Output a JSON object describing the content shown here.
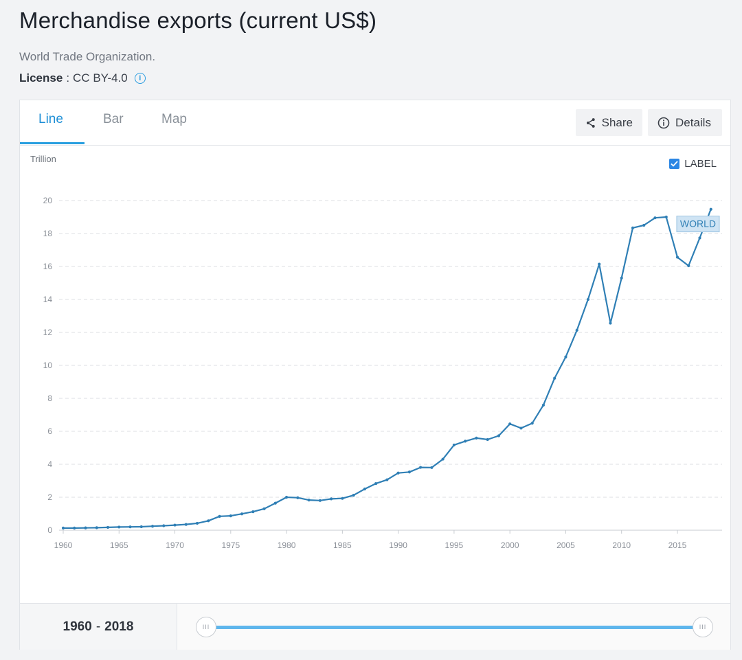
{
  "header": {
    "title": "Merchandise exports (current US$)",
    "source": "World Trade Organization.",
    "license_label": "License",
    "license_sep": ":",
    "license_value": "CC BY-4.0",
    "info_glyph": "i"
  },
  "tabs": [
    {
      "label": "Line",
      "active": true
    },
    {
      "label": "Bar",
      "active": false
    },
    {
      "label": "Map",
      "active": false
    }
  ],
  "toolbar": {
    "share_label": "Share",
    "details_label": "Details"
  },
  "chart_controls": {
    "label_toggle": "LABEL",
    "label_checked": true
  },
  "range": {
    "start": "1960",
    "end": "2018",
    "separator": "-",
    "handle_glyph": "III"
  },
  "colors": {
    "accent": "#2a9fe0",
    "line": "#2f7fb5",
    "grid": "#dcdfe3",
    "label_bg": "#cfe4f4"
  },
  "chart_data": {
    "type": "line",
    "title": "",
    "ylabel": "Trillion",
    "xlabel": "",
    "ylim": [
      0,
      20
    ],
    "yticks": [
      0,
      2,
      4,
      6,
      8,
      10,
      12,
      14,
      16,
      18,
      20
    ],
    "xticks": [
      1960,
      1965,
      1970,
      1975,
      1980,
      1985,
      1990,
      1995,
      2000,
      2005,
      2010,
      2015
    ],
    "grid": true,
    "series": [
      {
        "name": "WORLD",
        "label": "WORLD",
        "x": [
          1960,
          1961,
          1962,
          1963,
          1964,
          1965,
          1966,
          1967,
          1968,
          1969,
          1970,
          1971,
          1972,
          1973,
          1974,
          1975,
          1976,
          1977,
          1978,
          1979,
          1980,
          1981,
          1982,
          1983,
          1984,
          1985,
          1986,
          1987,
          1988,
          1989,
          1990,
          1991,
          1992,
          1993,
          1994,
          1995,
          1996,
          1997,
          1998,
          1999,
          2000,
          2001,
          2002,
          2003,
          2004,
          2005,
          2006,
          2007,
          2008,
          2009,
          2010,
          2011,
          2012,
          2013,
          2014,
          2015,
          2016,
          2017,
          2018
        ],
        "values": [
          0.13,
          0.13,
          0.14,
          0.15,
          0.17,
          0.19,
          0.2,
          0.21,
          0.24,
          0.27,
          0.31,
          0.35,
          0.42,
          0.57,
          0.84,
          0.87,
          0.99,
          1.12,
          1.3,
          1.64,
          2.0,
          1.97,
          1.83,
          1.8,
          1.9,
          1.93,
          2.12,
          2.5,
          2.83,
          3.06,
          3.47,
          3.53,
          3.81,
          3.8,
          4.31,
          5.17,
          5.4,
          5.59,
          5.5,
          5.73,
          6.45,
          6.19,
          6.49,
          7.59,
          9.22,
          10.51,
          12.13,
          14.0,
          16.14,
          12.56,
          15.3,
          18.34,
          18.5,
          18.95,
          19.0,
          16.56,
          16.04,
          17.73,
          19.47
        ]
      }
    ]
  }
}
